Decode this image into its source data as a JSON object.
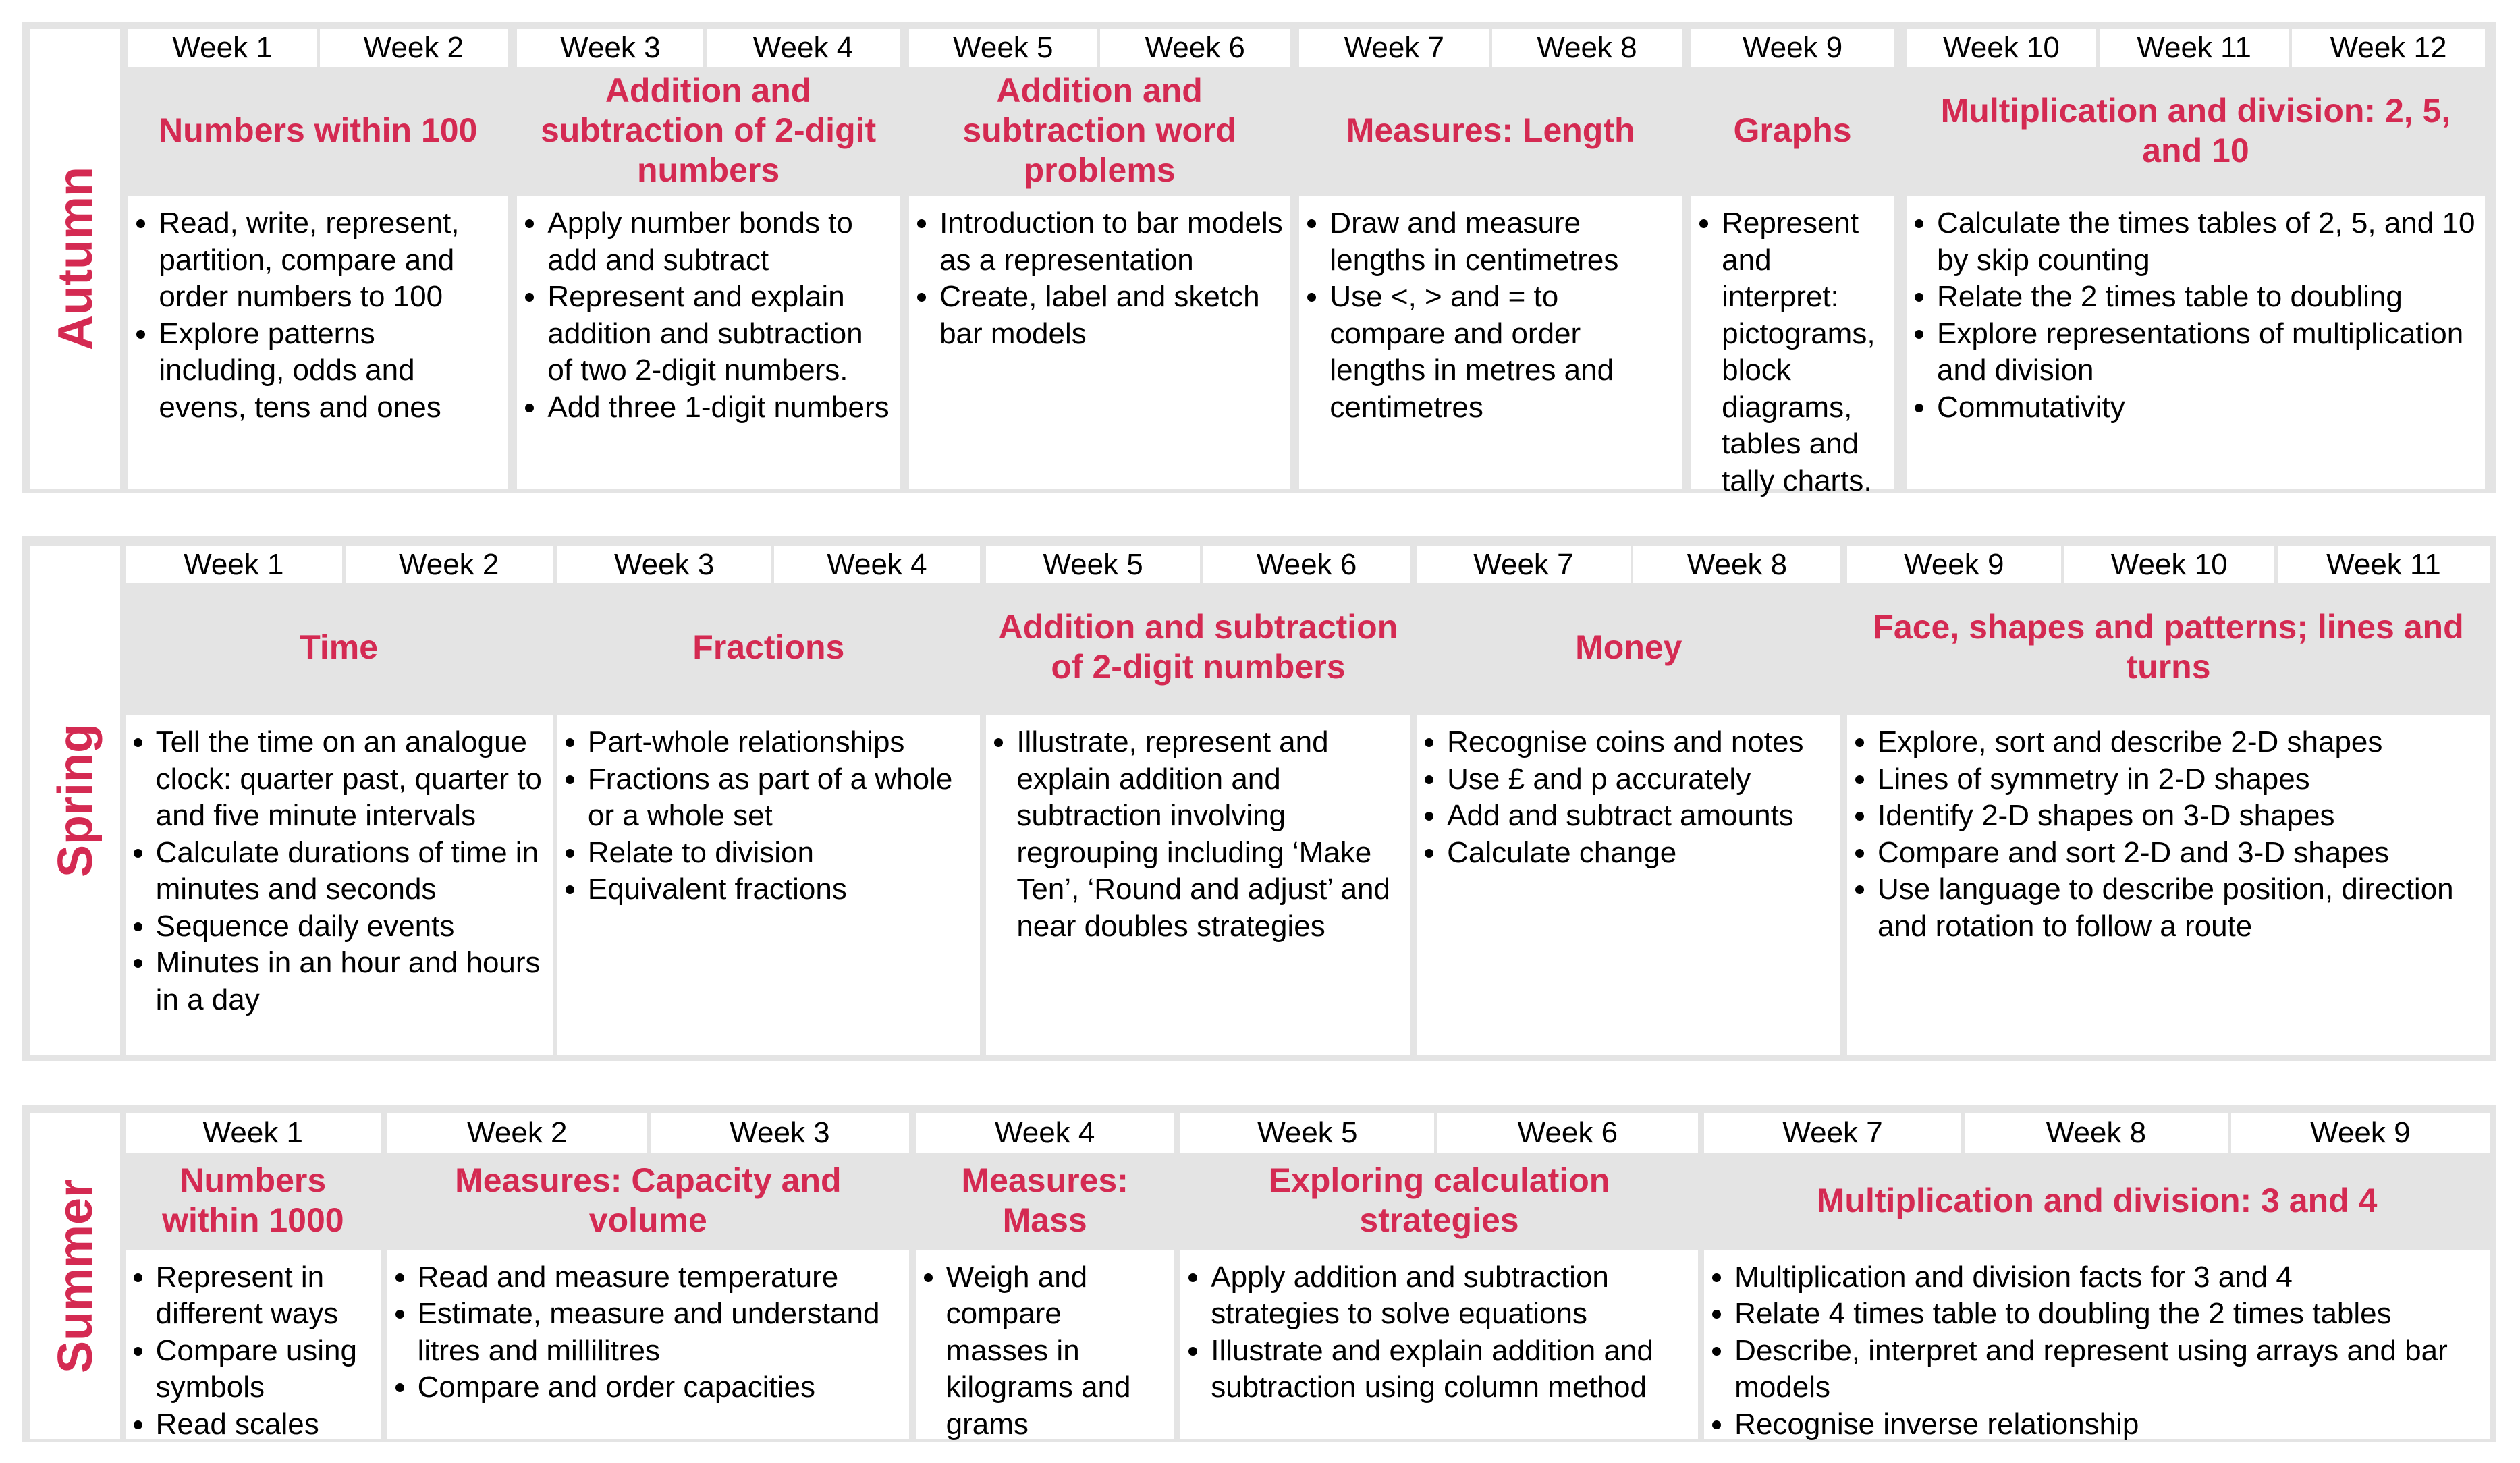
{
  "terms": [
    {
      "name": "Autumn",
      "weeks": [
        "Week 1",
        "Week 2",
        "Week 3",
        "Week 4",
        "Week 5",
        "Week 6",
        "Week 7",
        "Week 8",
        "Week 9",
        "Week 10",
        "Week 11",
        "Week 12"
      ],
      "units": [
        {
          "title": "Numbers within 100",
          "bullets": [
            "Read, write, represent, partition, compare and order numbers to 100",
            "Explore patterns including, odds and evens, tens and ones"
          ]
        },
        {
          "title": "Addition and subtraction of 2-digit numbers",
          "bullets": [
            "Apply number bonds to add and subtract",
            "Represent and explain addition and subtraction of two 2-digit numbers.",
            "Add three 1-digit numbers"
          ]
        },
        {
          "title": "Addition and subtraction word problems",
          "bullets": [
            "Introduction to bar models as a representation",
            "Create, label and sketch bar models"
          ]
        },
        {
          "title": "Measures: Length",
          "bullets": [
            "Draw and measure lengths in centimetres",
            "Use <, > and = to compare and order lengths in metres and centimetres"
          ]
        },
        {
          "title": "Graphs",
          "bullets": [
            "Represent and interpret: pictograms, block diagrams, tables and tally charts."
          ]
        },
        {
          "title": "Multiplication and division: 2, 5, and 10",
          "bullets": [
            "Calculate the times tables of 2, 5, and 10 by skip counting",
            "Relate the 2 times table to doubling",
            "Explore representations of multiplication and division",
            "Commutativity"
          ]
        }
      ]
    },
    {
      "name": "Spring",
      "weeks": [
        "Week 1",
        "Week 2",
        "Week 3",
        "Week 4",
        "Week 5",
        "Week 6",
        "Week 7",
        "Week 8",
        "Week 9",
        "Week 10",
        "Week 11"
      ],
      "units": [
        {
          "title": "Time",
          "bullets": [
            "Tell the time on an analogue clock: quarter past, quarter to and five minute intervals",
            "Calculate durations of time in minutes and seconds",
            "Sequence daily events",
            "Minutes in an hour and hours in a day"
          ]
        },
        {
          "title": "Fractions",
          "bullets": [
            "Part-whole relationships",
            "Fractions as part of a whole or a whole set",
            "Relate to division",
            "Equivalent fractions"
          ]
        },
        {
          "title": "Addition and subtraction of 2-digit numbers",
          "bullets": [
            "Illustrate, represent and explain addition and subtraction involving regrouping including ‘Make Ten’, ‘Round and adjust’ and near doubles strategies"
          ]
        },
        {
          "title": "Money",
          "bullets": [
            "Recognise coins and notes",
            "Use £ and p accurately",
            "Add and subtract amounts",
            "Calculate change"
          ]
        },
        {
          "title": "Face, shapes and patterns; lines and turns",
          "bullets": [
            "Explore, sort and describe 2-D shapes",
            "Lines of symmetry in 2-D shapes",
            "Identify 2-D shapes on 3-D shapes",
            "Compare and sort 2-D and 3-D shapes",
            "Use language to describe position, direction and rotation to follow a route"
          ]
        }
      ]
    },
    {
      "name": "Summer",
      "weeks": [
        "Week 1",
        "Week 2",
        "Week 3",
        "Week 4",
        "Week 5",
        "Week 6",
        "Week 7",
        "Week 8",
        "Week 9"
      ],
      "units": [
        {
          "title": "Numbers within 1000",
          "bullets": [
            "Represent in different ways",
            "Compare using symbols",
            "Read scales"
          ]
        },
        {
          "title": "Measures: Capacity and volume",
          "bullets": [
            "Read and measure temperature",
            "Estimate, measure and understand litres and millilitres",
            "Compare and order capacities"
          ]
        },
        {
          "title": "Measures: Mass",
          "bullets": [
            "Weigh and compare masses in kilograms and grams"
          ]
        },
        {
          "title": "Exploring calculation strategies",
          "bullets": [
            "Apply addition and subtraction strategies to solve equations",
            "Illustrate and explain addition and subtraction using column method"
          ]
        },
        {
          "title": "Multiplication and division: 3 and 4",
          "bullets": [
            "Multiplication and division facts for 3 and 4",
            "Relate 4 times table to doubling the 2 times tables",
            "Describe, interpret and represent using arrays and bar models",
            "Recognise inverse relationship"
          ]
        }
      ]
    }
  ]
}
